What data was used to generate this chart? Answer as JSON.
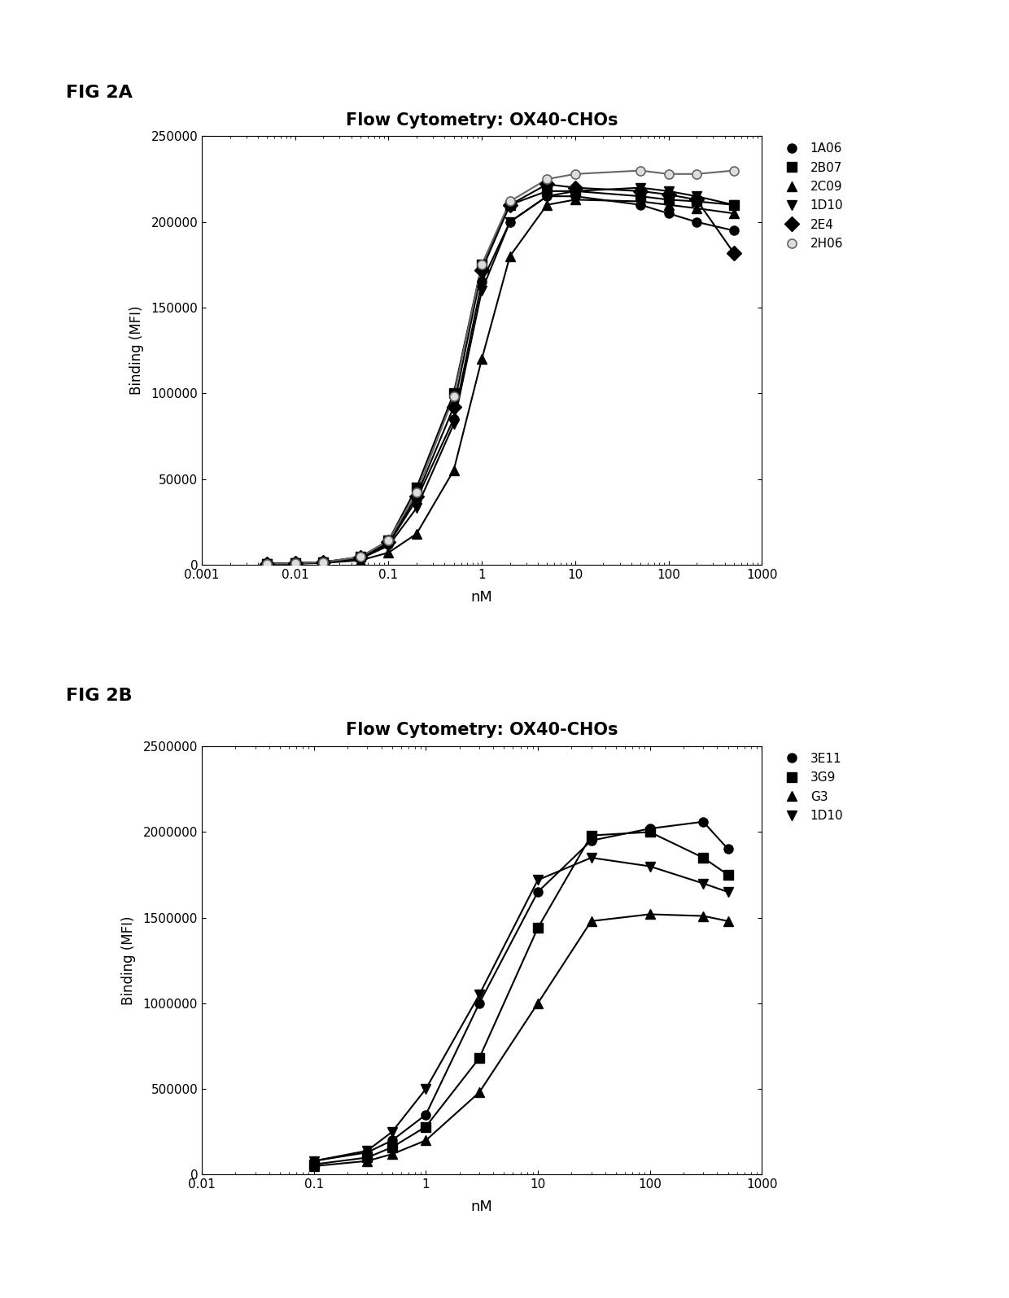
{
  "fig_label_a": "FIG 2A",
  "fig_label_b": "FIG 2B",
  "title": "Flow Cytometry: OX40-CHOs",
  "xlabel": "nM",
  "ylabel": "Binding (MFI)",
  "background_color": "#ffffff",
  "panel_a": {
    "series": [
      {
        "label": "1A06",
        "marker": "o",
        "color": "#000000",
        "x": [
          0.005,
          0.01,
          0.02,
          0.05,
          0.1,
          0.2,
          0.5,
          1.0,
          2.0,
          5.0,
          10.0,
          50.0,
          100.0,
          200.0,
          500.0
        ],
        "y": [
          500,
          800,
          1500,
          4000,
          12000,
          38000,
          85000,
          165000,
          200000,
          215000,
          215000,
          210000,
          205000,
          200000,
          195000
        ]
      },
      {
        "label": "2B07",
        "marker": "s",
        "color": "#000000",
        "x": [
          0.005,
          0.01,
          0.02,
          0.05,
          0.1,
          0.2,
          0.5,
          1.0,
          2.0,
          5.0,
          10.0,
          50.0,
          100.0,
          200.0,
          500.0
        ],
        "y": [
          500,
          800,
          1500,
          4500,
          14000,
          45000,
          100000,
          175000,
          210000,
          218000,
          218000,
          215000,
          213000,
          212000,
          210000
        ]
      },
      {
        "label": "2C09",
        "marker": "^",
        "color": "#000000",
        "x": [
          0.005,
          0.01,
          0.02,
          0.05,
          0.1,
          0.2,
          0.5,
          1.0,
          2.0,
          5.0,
          10.0,
          50.0,
          100.0,
          200.0,
          500.0
        ],
        "y": [
          300,
          500,
          1000,
          2500,
          7000,
          18000,
          55000,
          120000,
          180000,
          210000,
          213000,
          212000,
          210000,
          208000,
          205000
        ]
      },
      {
        "label": "1D10",
        "marker": "v",
        "color": "#000000",
        "x": [
          0.005,
          0.01,
          0.02,
          0.05,
          0.1,
          0.2,
          0.5,
          1.0,
          2.0,
          5.0,
          10.0,
          50.0,
          100.0,
          200.0,
          500.0
        ],
        "y": [
          400,
          700,
          1200,
          3500,
          11000,
          33000,
          82000,
          160000,
          200000,
          215000,
          218000,
          220000,
          218000,
          215000,
          210000
        ]
      },
      {
        "label": "2E4",
        "marker": "D",
        "color": "#000000",
        "x": [
          0.005,
          0.01,
          0.02,
          0.05,
          0.1,
          0.2,
          0.5,
          1.0,
          2.0,
          5.0,
          10.0,
          50.0,
          100.0,
          200.0,
          500.0
        ],
        "y": [
          500,
          800,
          1500,
          4000,
          13000,
          40000,
          92000,
          172000,
          210000,
          222000,
          220000,
          218000,
          216000,
          213000,
          182000
        ]
      },
      {
        "label": "2H06",
        "marker": "o",
        "color": "#888888",
        "marker_style": "open",
        "x": [
          0.005,
          0.01,
          0.02,
          0.05,
          0.1,
          0.2,
          0.5,
          1.0,
          2.0,
          5.0,
          10.0,
          50.0,
          100.0,
          200.0,
          500.0
        ],
        "y": [
          500,
          800,
          1500,
          4500,
          14000,
          42000,
          98000,
          175000,
          212000,
          225000,
          228000,
          230000,
          228000,
          228000,
          230000
        ]
      }
    ],
    "ylim": [
      0,
      250000
    ],
    "yticks": [
      0,
      50000,
      100000,
      150000,
      200000,
      250000
    ],
    "xlim": [
      0.001,
      1000
    ]
  },
  "panel_b": {
    "series": [
      {
        "label": "3E11",
        "marker": "o",
        "color": "#000000",
        "x": [
          0.1,
          0.3,
          0.5,
          1.0,
          3.0,
          10.0,
          30.0,
          100.0,
          300.0,
          500.0
        ],
        "y": [
          80000,
          130000,
          200000,
          350000,
          1000000,
          1650000,
          1950000,
          2020000,
          2060000,
          1900000
        ]
      },
      {
        "label": "3G9",
        "marker": "s",
        "color": "#000000",
        "x": [
          0.1,
          0.3,
          0.5,
          1.0,
          3.0,
          10.0,
          30.0,
          100.0,
          300.0,
          500.0
        ],
        "y": [
          60000,
          100000,
          160000,
          280000,
          680000,
          1440000,
          1980000,
          2000000,
          1850000,
          1750000
        ]
      },
      {
        "label": "G3",
        "marker": "^",
        "color": "#000000",
        "x": [
          0.1,
          0.3,
          0.5,
          1.0,
          3.0,
          10.0,
          30.0,
          100.0,
          300.0,
          500.0
        ],
        "y": [
          50000,
          80000,
          120000,
          200000,
          480000,
          1000000,
          1480000,
          1520000,
          1510000,
          1480000
        ]
      },
      {
        "label": "1D10",
        "marker": "v",
        "color": "#000000",
        "x": [
          0.1,
          0.3,
          0.5,
          1.0,
          3.0,
          10.0,
          30.0,
          100.0,
          300.0,
          500.0
        ],
        "y": [
          80000,
          140000,
          250000,
          500000,
          1050000,
          1720000,
          1850000,
          1800000,
          1700000,
          1650000
        ]
      }
    ],
    "ylim": [
      0,
      2500000
    ],
    "yticks": [
      0,
      500000,
      1000000,
      1500000,
      2000000,
      2500000
    ],
    "xlim": [
      0.01,
      1000
    ]
  }
}
